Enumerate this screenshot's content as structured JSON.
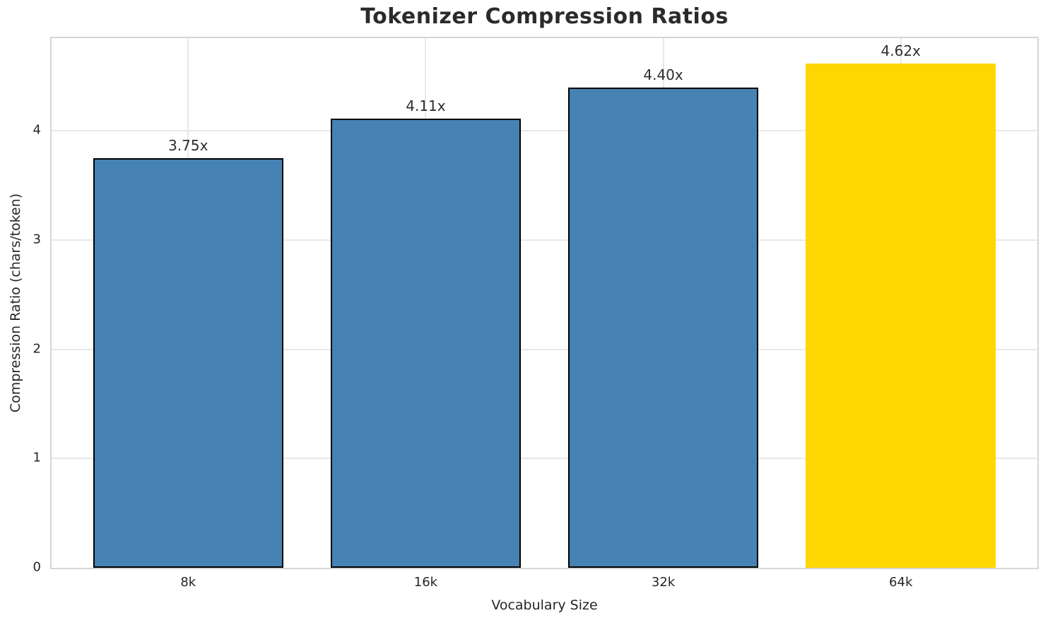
{
  "chart_data": {
    "type": "bar",
    "title": "Tokenizer Compression Ratios",
    "xlabel": "Vocabulary Size",
    "ylabel": "Compression Ratio (chars/token)",
    "categories": [
      "8k",
      "16k",
      "32k",
      "64k"
    ],
    "values": [
      3.75,
      4.11,
      4.4,
      4.62
    ],
    "bar_labels": [
      "3.75x",
      "4.11x",
      "4.40x",
      "4.62x"
    ],
    "yticks": [
      0,
      1,
      2,
      3,
      4
    ],
    "ylim": [
      0,
      4.85
    ],
    "grid": true,
    "legend_position": "none",
    "highlight_index": 3,
    "colors": {
      "bar_default": "#4682B4",
      "bar_highlight": "#FFD700",
      "bar_edge": "#000000",
      "grid": "#e8e8e8",
      "spine": "#d6d6d6",
      "text": "#262626"
    }
  }
}
